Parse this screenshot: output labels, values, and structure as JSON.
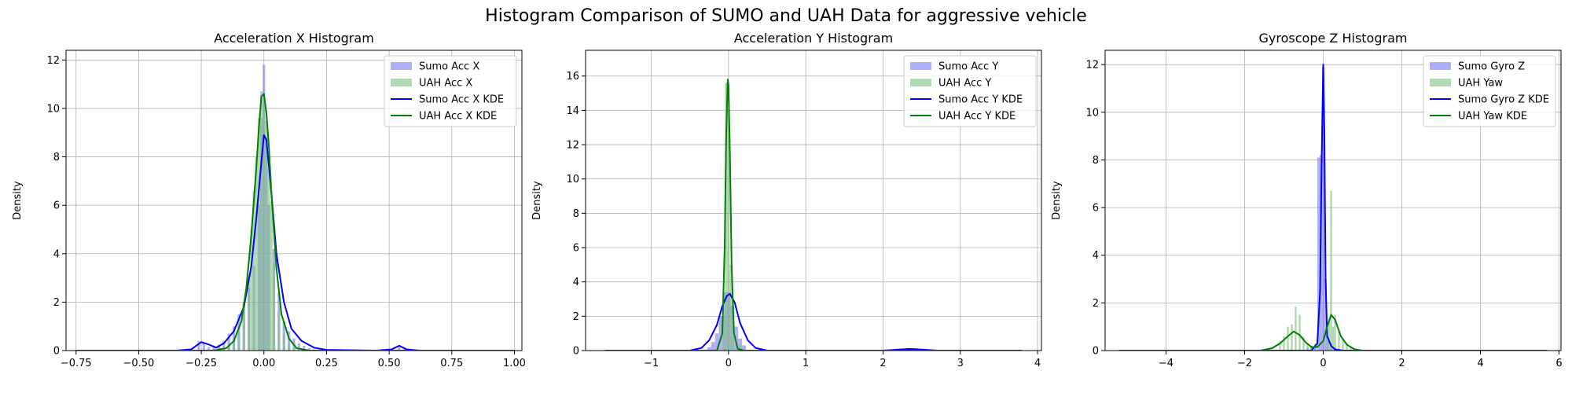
{
  "figure_title": "Histogram Comparison of SUMO and UAH Data for aggressive vehicle",
  "colors": {
    "sumo_hist": "#7b7bf0",
    "uah_hist": "#7fbf7f",
    "sumo_kde": "#0000ff",
    "uah_kde": "#008000",
    "grid": "#b0b0b0"
  },
  "chart_data": [
    {
      "type": "bar",
      "title": "Acceleration X Histogram",
      "xlabel": "",
      "ylabel": "Density",
      "xlim": [
        -0.79,
        1.03
      ],
      "ylim": [
        0,
        12.4
      ],
      "xticks": [
        -0.75,
        -0.5,
        -0.25,
        0.0,
        0.25,
        0.5,
        0.75,
        1.0
      ],
      "xtick_labels": [
        "−0.75",
        "−0.50",
        "−0.25",
        "0.00",
        "0.25",
        "0.50",
        "0.75",
        "1.00"
      ],
      "yticks": [
        0,
        2,
        4,
        6,
        8,
        10,
        12
      ],
      "legend_position": "top-right",
      "legend": [
        "Sumo Acc X",
        "UAH Acc X",
        "Sumo Acc X KDE",
        "UAH Acc X KDE"
      ],
      "hist_series": [
        {
          "name": "Sumo Acc X",
          "color": "#7b7bf0",
          "bins": [
            [
              -0.26,
              0.4
            ],
            [
              -0.24,
              0.3
            ],
            [
              -0.22,
              0.15
            ],
            [
              -0.2,
              0.15
            ],
            [
              -0.18,
              0.25
            ],
            [
              -0.16,
              0.4
            ],
            [
              -0.14,
              0.7
            ],
            [
              -0.12,
              1.0
            ],
            [
              -0.1,
              1.5
            ],
            [
              -0.08,
              2.0
            ],
            [
              -0.06,
              2.6
            ],
            [
              -0.04,
              3.5
            ],
            [
              -0.02,
              6.0
            ],
            [
              -0.01,
              9.6
            ],
            [
              0.0,
              11.8
            ],
            [
              0.01,
              8.8
            ],
            [
              0.02,
              6.0
            ],
            [
              0.04,
              4.2
            ],
            [
              0.06,
              2.4
            ],
            [
              0.08,
              1.2
            ],
            [
              0.1,
              0.8
            ],
            [
              0.12,
              0.5
            ],
            [
              0.14,
              0.3
            ],
            [
              0.16,
              0.2
            ],
            [
              0.18,
              0.1
            ],
            [
              0.2,
              0.05
            ],
            [
              0.54,
              0.2
            ],
            [
              0.56,
              0.1
            ]
          ]
        },
        {
          "name": "UAH Acc X",
          "color": "#7fbf7f",
          "bins": [
            [
              -0.14,
              0.2
            ],
            [
              -0.12,
              0.4
            ],
            [
              -0.1,
              0.8
            ],
            [
              -0.08,
              1.7
            ],
            [
              -0.06,
              3.0
            ],
            [
              -0.05,
              5.0
            ],
            [
              -0.04,
              6.6
            ],
            [
              -0.03,
              8.0
            ],
            [
              -0.02,
              9.6
            ],
            [
              -0.01,
              10.7
            ],
            [
              0.0,
              10.3
            ],
            [
              0.01,
              9.5
            ],
            [
              0.02,
              7.5
            ],
            [
              0.03,
              6.2
            ],
            [
              0.04,
              3.6
            ],
            [
              0.06,
              1.6
            ],
            [
              0.08,
              0.7
            ],
            [
              0.1,
              0.3
            ],
            [
              0.12,
              0.1
            ]
          ]
        }
      ],
      "kde_series": [
        {
          "name": "Sumo Acc X KDE",
          "color": "#0000ff",
          "points": [
            [
              -0.75,
              0
            ],
            [
              -0.35,
              0
            ],
            [
              -0.29,
              0.05
            ],
            [
              -0.25,
              0.35
            ],
            [
              -0.22,
              0.25
            ],
            [
              -0.19,
              0.12
            ],
            [
              -0.16,
              0.3
            ],
            [
              -0.12,
              0.8
            ],
            [
              -0.08,
              1.8
            ],
            [
              -0.05,
              3.5
            ],
            [
              -0.03,
              5.5
            ],
            [
              -0.01,
              7.8
            ],
            [
              0.0,
              8.9
            ],
            [
              0.01,
              8.7
            ],
            [
              0.03,
              6.5
            ],
            [
              0.05,
              4.0
            ],
            [
              0.08,
              2.0
            ],
            [
              0.11,
              0.9
            ],
            [
              0.15,
              0.4
            ],
            [
              0.2,
              0.12
            ],
            [
              0.25,
              0.03
            ],
            [
              0.45,
              0
            ],
            [
              0.51,
              0.05
            ],
            [
              0.54,
              0.2
            ],
            [
              0.57,
              0.05
            ],
            [
              0.62,
              0
            ],
            [
              1.0,
              0
            ]
          ]
        },
        {
          "name": "UAH Acc X KDE",
          "color": "#008000",
          "points": [
            [
              -0.75,
              0
            ],
            [
              -0.2,
              0
            ],
            [
              -0.15,
              0.1
            ],
            [
              -0.12,
              0.4
            ],
            [
              -0.09,
              1.2
            ],
            [
              -0.07,
              2.6
            ],
            [
              -0.05,
              4.8
            ],
            [
              -0.03,
              7.6
            ],
            [
              -0.02,
              9.2
            ],
            [
              -0.01,
              10.5
            ],
            [
              0.0,
              10.6
            ],
            [
              0.01,
              9.8
            ],
            [
              0.02,
              8.4
            ],
            [
              0.03,
              6.5
            ],
            [
              0.05,
              3.4
            ],
            [
              0.07,
              1.5
            ],
            [
              0.1,
              0.5
            ],
            [
              0.13,
              0.1
            ],
            [
              0.18,
              0
            ],
            [
              1.0,
              0
            ]
          ]
        }
      ]
    },
    {
      "type": "bar",
      "title": "Acceleration Y Histogram",
      "xlabel": "",
      "ylabel": "Density",
      "xlim": [
        -1.85,
        4.05
      ],
      "ylim": [
        0,
        17.5
      ],
      "xticks": [
        -1,
        0,
        1,
        2,
        3,
        4
      ],
      "xtick_labels": [
        "−1",
        "0",
        "1",
        "2",
        "3",
        "4"
      ],
      "yticks": [
        0,
        2,
        4,
        6,
        8,
        10,
        12,
        14,
        16
      ],
      "legend_position": "top-right",
      "legend": [
        "Sumo Acc Y",
        "UAH Acc Y",
        "Sumo Acc Y KDE",
        "UAH Acc Y KDE"
      ],
      "hist_series": [
        {
          "name": "Sumo Acc Y",
          "color": "#7b7bf0",
          "bins": [
            [
              -0.25,
              0.2
            ],
            [
              -0.2,
              0.5
            ],
            [
              -0.15,
              1.0
            ],
            [
              -0.1,
              2.0
            ],
            [
              -0.05,
              3.4
            ],
            [
              0.0,
              3.4
            ],
            [
              0.05,
              2.6
            ],
            [
              0.1,
              1.4
            ],
            [
              0.15,
              0.7
            ],
            [
              0.2,
              0.3
            ],
            [
              2.3,
              0.08
            ]
          ]
        },
        {
          "name": "UAH Acc Y",
          "color": "#7fbf7f",
          "bins": [
            [
              -0.06,
              2.0
            ],
            [
              -0.03,
              15.6
            ],
            [
              0.0,
              14.0
            ],
            [
              0.03,
              5.0
            ],
            [
              0.06,
              0.8
            ],
            [
              0.15,
              0.3
            ]
          ]
        }
      ],
      "kde_series": [
        {
          "name": "Sumo Acc Y KDE",
          "color": "#0000ff",
          "points": [
            [
              -1.6,
              0
            ],
            [
              -0.5,
              0
            ],
            [
              -0.35,
              0.15
            ],
            [
              -0.25,
              0.6
            ],
            [
              -0.15,
              1.5
            ],
            [
              -0.08,
              2.6
            ],
            [
              -0.02,
              3.2
            ],
            [
              0.02,
              3.3
            ],
            [
              0.08,
              2.8
            ],
            [
              0.15,
              1.6
            ],
            [
              0.25,
              0.6
            ],
            [
              0.35,
              0.15
            ],
            [
              0.5,
              0
            ],
            [
              2.0,
              0
            ],
            [
              2.2,
              0.06
            ],
            [
              2.35,
              0.1
            ],
            [
              2.5,
              0.06
            ],
            [
              2.7,
              0
            ],
            [
              3.8,
              0
            ]
          ]
        },
        {
          "name": "UAH Acc Y KDE",
          "color": "#008000",
          "points": [
            [
              -1.6,
              0
            ],
            [
              -0.15,
              0
            ],
            [
              -0.08,
              1.0
            ],
            [
              -0.05,
              6.0
            ],
            [
              -0.03,
              12.5
            ],
            [
              -0.01,
              15.8
            ],
            [
              0.0,
              15.5
            ],
            [
              0.02,
              11.0
            ],
            [
              0.04,
              5.0
            ],
            [
              0.07,
              1.0
            ],
            [
              0.12,
              0.1
            ],
            [
              0.2,
              0
            ],
            [
              3.8,
              0
            ]
          ]
        }
      ]
    },
    {
      "type": "bar",
      "title": "Gyroscope Z Histogram",
      "xlabel": "",
      "ylabel": "Density",
      "xlim": [
        -5.55,
        6.05
      ],
      "ylim": [
        0,
        12.6
      ],
      "xticks": [
        -4,
        -2,
        0,
        2,
        4,
        6
      ],
      "xtick_labels": [
        "−4",
        "−2",
        "0",
        "2",
        "4",
        "6"
      ],
      "yticks": [
        0,
        2,
        4,
        6,
        8,
        10,
        12
      ],
      "legend_position": "top-right",
      "legend": [
        "Sumo Gyro Z",
        "UAH Yaw",
        "Sumo Gyro Z KDE",
        "UAH Yaw KDE"
      ],
      "hist_series": [
        {
          "name": "Sumo Gyro Z",
          "color": "#7b7bf0",
          "bins": [
            [
              -0.4,
              0.1
            ],
            [
              -0.3,
              0.2
            ],
            [
              -0.2,
              0.25
            ],
            [
              -0.12,
              8.1
            ],
            [
              -0.06,
              8.2
            ],
            [
              0.0,
              11.9
            ],
            [
              0.06,
              3.0
            ],
            [
              0.12,
              0.4
            ],
            [
              0.2,
              0.3
            ],
            [
              0.3,
              0.15
            ]
          ]
        },
        {
          "name": "UAH Yaw",
          "color": "#7fbf7f",
          "bins": [
            [
              -1.1,
              0.4
            ],
            [
              -1.0,
              0.6
            ],
            [
              -0.9,
              1.0
            ],
            [
              -0.8,
              1.1
            ],
            [
              -0.7,
              1.85
            ],
            [
              -0.6,
              1.5
            ],
            [
              -0.5,
              0.6
            ],
            [
              -0.4,
              0.3
            ],
            [
              -0.3,
              0.2
            ],
            [
              -0.2,
              0.3
            ],
            [
              0.1,
              0.6
            ],
            [
              0.15,
              1.2
            ],
            [
              0.2,
              6.7
            ],
            [
              0.25,
              1.0
            ],
            [
              0.3,
              1.5
            ],
            [
              0.4,
              0.8
            ],
            [
              0.5,
              0.5
            ],
            [
              0.6,
              0.3
            ],
            [
              0.7,
              0.15
            ]
          ]
        }
      ],
      "kde_series": [
        {
          "name": "Sumo Gyro Z KDE",
          "color": "#0000ff",
          "points": [
            [
              -5.2,
              0
            ],
            [
              -0.3,
              0
            ],
            [
              -0.15,
              0.3
            ],
            [
              -0.08,
              2.5
            ],
            [
              -0.04,
              8.0
            ],
            [
              0.0,
              12.0
            ],
            [
              0.03,
              9.0
            ],
            [
              0.06,
              3.0
            ],
            [
              0.1,
              0.6
            ],
            [
              0.2,
              0.2
            ],
            [
              0.3,
              0.05
            ],
            [
              0.5,
              0
            ],
            [
              5.7,
              0
            ]
          ]
        },
        {
          "name": "UAH Yaw KDE",
          "color": "#008000",
          "points": [
            [
              -5.2,
              0
            ],
            [
              -1.6,
              0
            ],
            [
              -1.3,
              0.1
            ],
            [
              -1.1,
              0.3
            ],
            [
              -0.9,
              0.6
            ],
            [
              -0.75,
              0.8
            ],
            [
              -0.6,
              0.65
            ],
            [
              -0.45,
              0.35
            ],
            [
              -0.3,
              0.15
            ],
            [
              -0.15,
              0.15
            ],
            [
              0.0,
              0.4
            ],
            [
              0.1,
              1.0
            ],
            [
              0.2,
              1.5
            ],
            [
              0.3,
              1.3
            ],
            [
              0.45,
              0.6
            ],
            [
              0.6,
              0.25
            ],
            [
              0.8,
              0.05
            ],
            [
              1.0,
              0
            ],
            [
              5.7,
              0
            ]
          ]
        }
      ]
    }
  ]
}
